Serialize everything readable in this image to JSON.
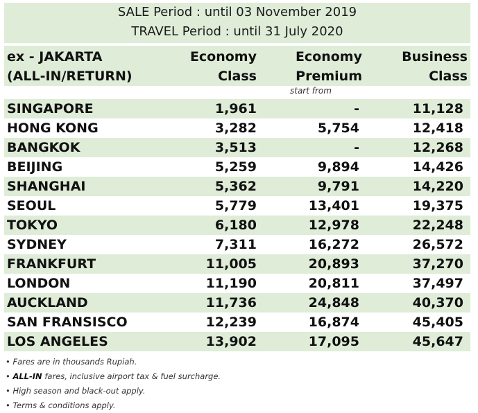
{
  "header": {
    "sale_period": "SALE Period : until 03 November 2019",
    "travel_period": "TRAVEL Period : until 31 July 2020"
  },
  "columns": {
    "origin_line1": "ex - JAKARTA",
    "origin_line2": "(ALL-IN/RETURN)",
    "eco_line1": "Economy",
    "eco_line2": "Class",
    "prem_line1": "Economy",
    "prem_line2": "Premium",
    "bus_line1": "Business",
    "bus_line2": "Class",
    "start_from": "start from"
  },
  "rows": [
    [
      "SINGAPORE",
      "1,961",
      "-",
      "11,128"
    ],
    [
      "HONG KONG",
      "3,282",
      "5,754",
      "12,418"
    ],
    [
      "BANGKOK",
      "3,513",
      "-",
      "12,268"
    ],
    [
      "BEIJING",
      "5,259",
      "9,894",
      "14,426"
    ],
    [
      "SHANGHAI",
      "5,362",
      "9,791",
      "14,220"
    ],
    [
      "SEOUL",
      "5,779",
      "13,401",
      "19,375"
    ],
    [
      "TOKYO",
      "6,180",
      "12,978",
      "22,248"
    ],
    [
      "SYDNEY",
      "7,311",
      "16,272",
      "26,572"
    ],
    [
      "FRANKFURT",
      "11,005",
      "20,893",
      "37,270"
    ],
    [
      "LONDON",
      "11,190",
      "20,811",
      "37,497"
    ],
    [
      "AUCKLAND",
      "11,736",
      "24,848",
      "40,370"
    ],
    [
      "SAN FRANSISCO",
      "12,239",
      "16,874",
      "45,405"
    ],
    [
      "LOS ANGELES",
      "13,902",
      "17,095",
      "45,647"
    ]
  ],
  "notes": {
    "n1": "Fares are in thousands Rupiah.",
    "n2_bold": "ALL-IN",
    "n2_rest": " fares, inclusive airport tax & fuel surcharge.",
    "n3": "High season and black-out apply.",
    "n4": "Terms & conditions apply."
  }
}
